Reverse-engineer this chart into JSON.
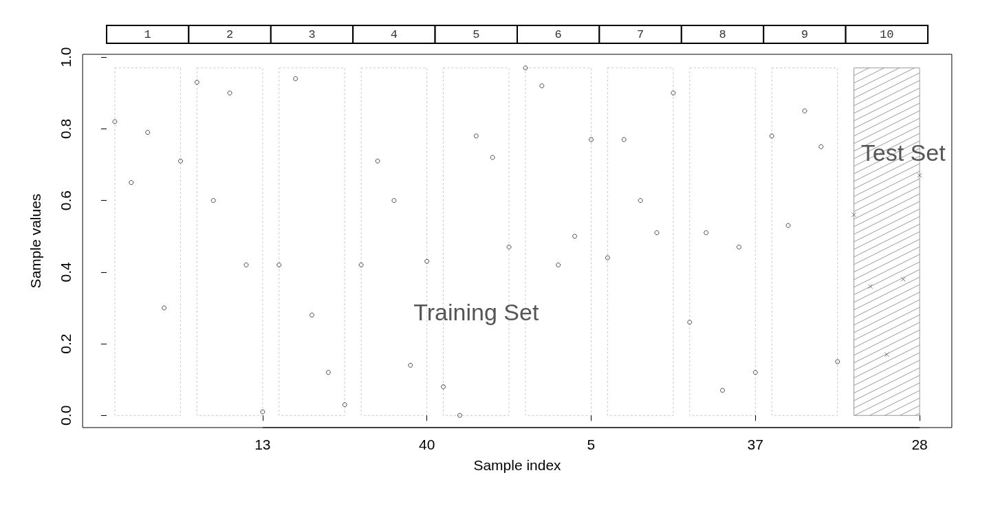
{
  "chart_data": {
    "type": "scatter",
    "xlabel": "Sample index",
    "ylabel": "Sample values",
    "categories": [
      null,
      null,
      null,
      null,
      null,
      null,
      null,
      null,
      null,
      "13",
      null,
      null,
      null,
      null,
      null,
      null,
      null,
      null,
      null,
      "40",
      null,
      null,
      null,
      null,
      null,
      null,
      null,
      null,
      null,
      "5",
      null,
      null,
      null,
      null,
      null,
      null,
      null,
      null,
      null,
      "37",
      null,
      null,
      null,
      null,
      null,
      null,
      null,
      null,
      null,
      "28"
    ],
    "ylim": [
      -0.034,
      1.008
    ],
    "yticks": [
      {
        "value": 0,
        "label": "0.0"
      },
      {
        "value": 0.2,
        "label": "0.2"
      },
      {
        "value": 0.4,
        "label": "0.4"
      },
      {
        "value": 0.6,
        "label": "0.6"
      },
      {
        "value": 0.8,
        "label": "0.8"
      },
      {
        "value": 1,
        "label": "1.0"
      }
    ],
    "grid": false,
    "series": [
      {
        "color": "#222222",
        "marker": "circle",
        "values": [
          0.82,
          0.65,
          0.79,
          0.3,
          0.71,
          0.93,
          0.6,
          0.9,
          0.42,
          0.01,
          0.42,
          0.94,
          0.28,
          0.12,
          0.03,
          0.42,
          0.71,
          0.6,
          0.14,
          0.43,
          0.08,
          0.0,
          0.78,
          0.72,
          0.47,
          0.97,
          0.92,
          0.42,
          0.5,
          0.77,
          0.44,
          0.77,
          0.6,
          0.51,
          0.9,
          0.26,
          0.51,
          0.07,
          0.47,
          0.12,
          0.78,
          0.53,
          0.85,
          0.75,
          0.15,
          null,
          null,
          null,
          null,
          null
        ]
      },
      {
        "color": "#555555",
        "marker": "cross",
        "values": [
          null,
          null,
          null,
          null,
          null,
          null,
          null,
          null,
          null,
          null,
          null,
          null,
          null,
          null,
          null,
          null,
          null,
          null,
          null,
          null,
          null,
          null,
          null,
          null,
          null,
          null,
          null,
          null,
          null,
          null,
          null,
          null,
          null,
          null,
          null,
          null,
          null,
          null,
          null,
          null,
          null,
          null,
          null,
          null,
          null,
          0.56,
          0.36,
          0.17,
          0.38,
          0.67
        ]
      }
    ],
    "annotations": [
      "1",
      "2",
      "3",
      "4",
      "5",
      "6",
      "7",
      "8",
      "9",
      "10",
      "Training Set",
      {
        "text": "Test Set",
        "x": "28",
        "y": 0.67
      }
    ]
  }
}
